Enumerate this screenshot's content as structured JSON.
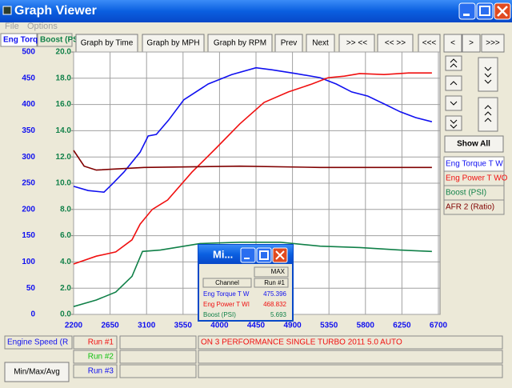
{
  "window": {
    "title": "Graph Viewer"
  },
  "menu": [
    "File",
    "Options"
  ],
  "tabs": [
    "Eng Torq",
    "Boost (PS"
  ],
  "toolbar": [
    "Graph by Time",
    "Graph by MPH",
    "Graph by RPM",
    "Prev",
    "Next",
    ">> <<",
    "<< >>",
    "<<<",
    "<",
    ">",
    ">>>"
  ],
  "side_panel": {
    "show_all": "Show All"
  },
  "chart_data": {
    "type": "line",
    "xlim": [
      2200,
      6700
    ],
    "xticks": [
      2200,
      2650,
      3100,
      3550,
      4000,
      4450,
      4900,
      5350,
      5800,
      6250,
      6700
    ],
    "ylim": [
      0,
      500
    ],
    "yticks": [
      0,
      50,
      100,
      150,
      200,
      250,
      300,
      350,
      400,
      450,
      500
    ],
    "y2lim": [
      0,
      20
    ],
    "y2ticks": [
      {
        "value": 0,
        "label": "0.0"
      },
      {
        "value": 2,
        "label": "2.0"
      },
      {
        "value": 4,
        "label": "4.0"
      },
      {
        "value": 6,
        "label": "6.0"
      },
      {
        "value": 8,
        "label": "8.0"
      },
      {
        "value": 10,
        "label": "10.0"
      },
      {
        "value": 12,
        "label": "12.0"
      },
      {
        "value": 14,
        "label": "14.0"
      },
      {
        "value": 16,
        "label": "16.0"
      },
      {
        "value": 18,
        "label": "18.0"
      },
      {
        "value": 20,
        "label": "20.0"
      }
    ],
    "grid": true,
    "series": [
      {
        "name": "Eng Torque T W",
        "color": "#1010f0",
        "x": [
          2200,
          2380,
          2575,
          2675,
          2820,
          3020,
          3120,
          3220,
          3370,
          3560,
          3860,
          4150,
          4450,
          4650,
          4940,
          5240,
          5440,
          5630,
          5830,
          6030,
          6230,
          6420,
          6620
        ],
        "values": [
          244,
          236,
          233,
          248,
          271,
          309,
          340,
          343,
          370,
          409,
          439,
          457,
          470,
          466,
          459,
          451,
          439,
          424,
          416,
          401,
          386,
          375,
          367
        ]
      },
      {
        "name": "Eng Power T WO",
        "color": "#f01010",
        "x": [
          2200,
          2480,
          2720,
          2920,
          3020,
          3170,
          3360,
          3660,
          3960,
          4250,
          4550,
          4850,
          5140,
          5340,
          5540,
          5730,
          6030,
          6330,
          6620
        ],
        "values": [
          96,
          111,
          119,
          142,
          172,
          200,
          218,
          271,
          317,
          363,
          404,
          424,
          439,
          451,
          454,
          459,
          457,
          460,
          460
        ]
      },
      {
        "name": "Boost (PSI)",
        "color": "#108048",
        "axis": "y2",
        "x": [
          2200,
          2480,
          2720,
          2920,
          3050,
          3270,
          3760,
          4250,
          4750,
          5240,
          5730,
          6230,
          6620
        ],
        "values": [
          0.6,
          1.1,
          1.7,
          2.9,
          4.8,
          4.9,
          5.4,
          5.5,
          5.5,
          5.2,
          5.1,
          4.9,
          4.8
        ]
      },
      {
        "name": "AFR 2 (Ratio)",
        "color": "#800000",
        "axis": "y2",
        "x": [
          2200,
          2330,
          2480,
          3070,
          4250,
          5240,
          6620
        ],
        "values": [
          12.5,
          11.3,
          11.0,
          11.2,
          11.3,
          11.2,
          11.2
        ]
      }
    ]
  },
  "bottom": {
    "x_channel": "Engine Speed (R",
    "runs": [
      "Run #1",
      "Run #2",
      "Run #3"
    ],
    "description": "ON 3 PERFORMANCE SINGLE TURBO 2011 5.0 AUTO",
    "button": "Min/Max/Avg"
  },
  "popup": {
    "title": "Mi...",
    "header": "MAX",
    "columns": [
      "Channel",
      "Run #1"
    ],
    "rows": [
      [
        "Eng Torque T W",
        "475.396"
      ],
      [
        "Eng Power T WI",
        "468.832"
      ],
      [
        "Boost (PSI)",
        "5.693"
      ]
    ]
  }
}
